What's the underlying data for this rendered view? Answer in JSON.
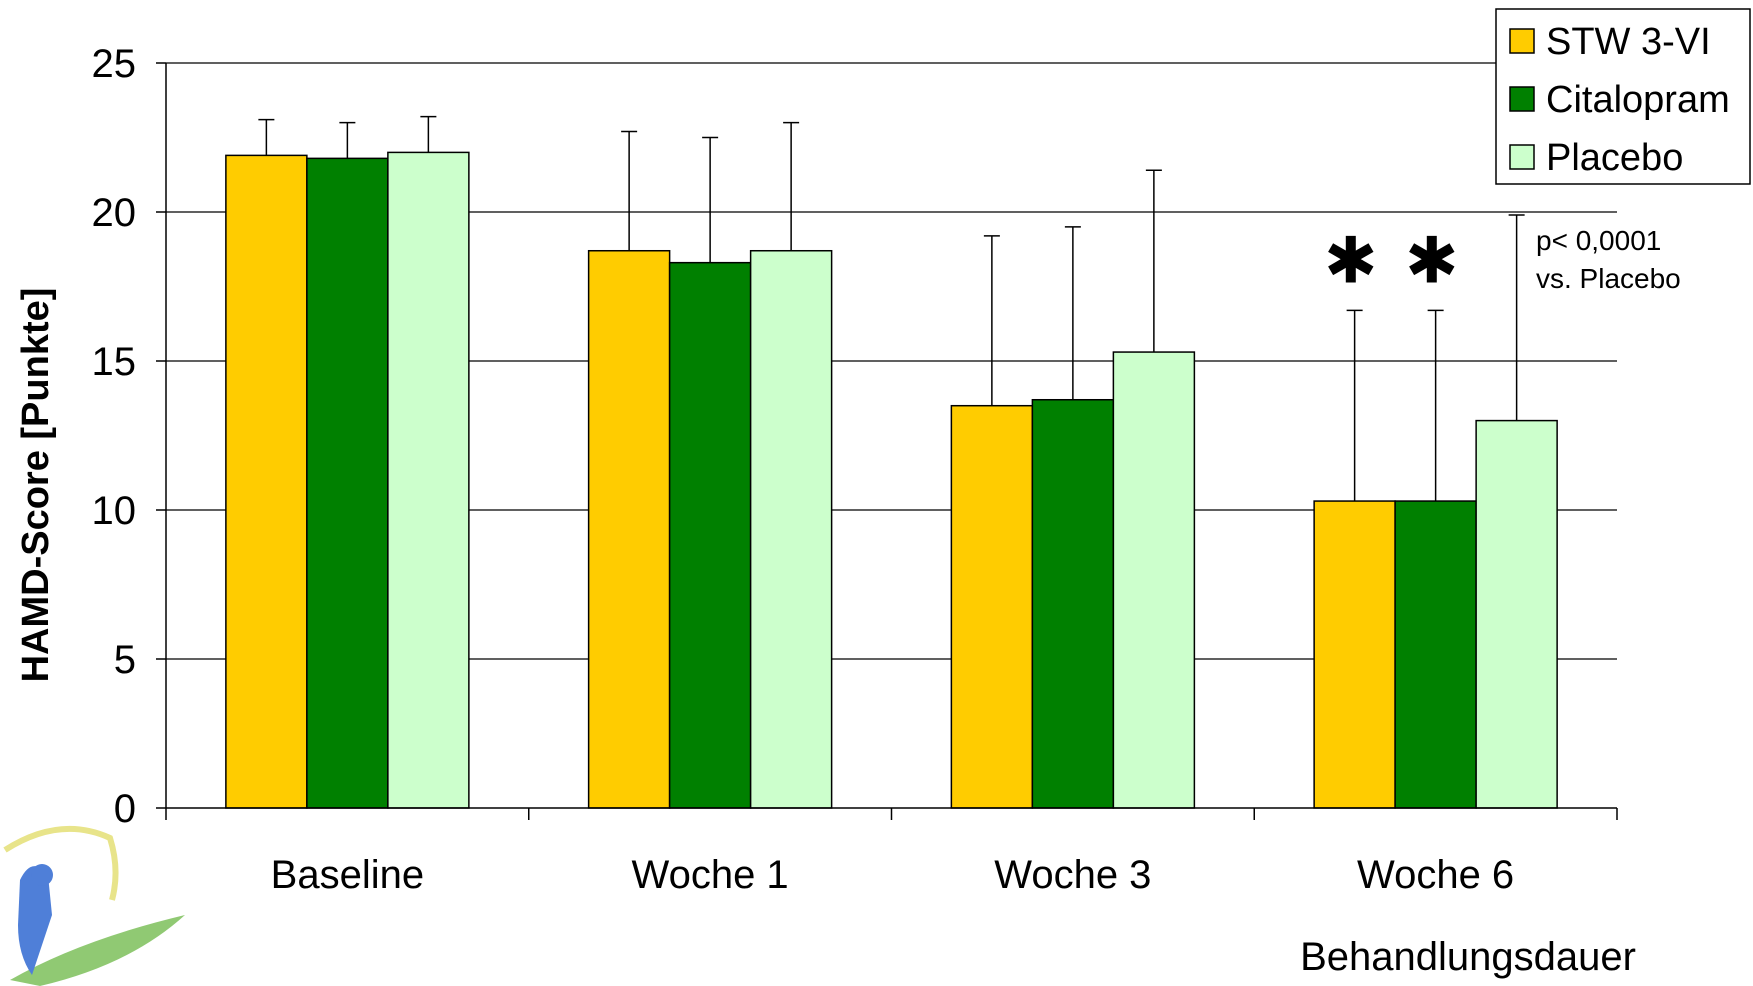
{
  "chart_data": {
    "type": "bar",
    "title": "",
    "xlabel": "Behandlungsdauer",
    "ylabel": "HAMD-Score [Punkte]",
    "ylim": [
      0,
      25
    ],
    "yticks": [
      0,
      5,
      10,
      15,
      20,
      25
    ],
    "grid": true,
    "legend_position": "top-right",
    "categories": [
      "Baseline",
      "Woche 1",
      "Woche 3",
      "Woche 6"
    ],
    "series": [
      {
        "name": "STW 3-VI",
        "color": "#FFCC00",
        "values": [
          21.9,
          18.7,
          13.5,
          10.3
        ],
        "error_upper": [
          23.1,
          22.7,
          19.2,
          16.7
        ]
      },
      {
        "name": "Citalopram",
        "color": "#008000",
        "values": [
          21.8,
          18.3,
          13.7,
          10.3
        ],
        "error_upper": [
          23.0,
          22.5,
          19.5,
          16.7
        ]
      },
      {
        "name": "Placebo",
        "color": "#CCFFCC",
        "values": [
          22.0,
          18.7,
          15.3,
          13.0
        ],
        "error_upper": [
          23.2,
          23.0,
          21.4,
          19.9
        ]
      }
    ],
    "annotations": {
      "significance_markers": [
        {
          "category": "Woche 6",
          "series": "STW 3-VI",
          "symbol": "✱"
        },
        {
          "category": "Woche 6",
          "series": "Citalopram",
          "symbol": "✱"
        }
      ],
      "pvalue_line1": "p< 0,0001",
      "pvalue_line2": "vs. Placebo"
    }
  }
}
